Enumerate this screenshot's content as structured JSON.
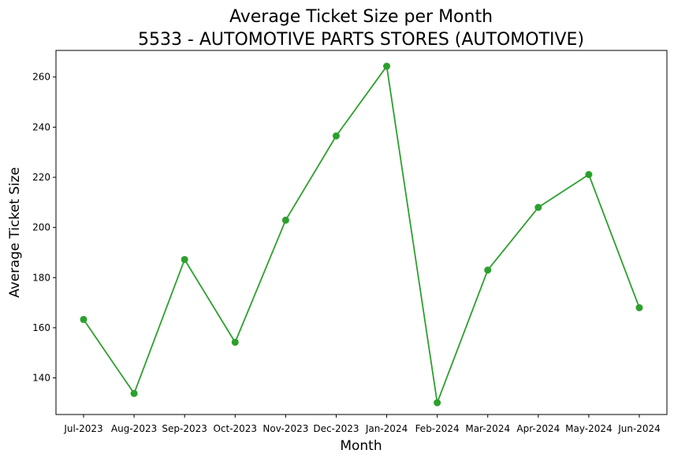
{
  "chart_data": {
    "type": "line",
    "title": "Average Ticket Size per Month",
    "subtitle": "5533 - AUTOMOTIVE PARTS STORES (AUTOMOTIVE)",
    "xlabel": "Month",
    "ylabel": "Average Ticket Size",
    "categories": [
      "Jul-2023",
      "Aug-2023",
      "Sep-2023",
      "Oct-2023",
      "Nov-2023",
      "Dec-2023",
      "Jan-2024",
      "Feb-2024",
      "Mar-2024",
      "Apr-2024",
      "May-2024",
      "Jun-2024"
    ],
    "series": [
      {
        "color": "#2ca02c",
        "marker": "circle",
        "values": [
          163.3,
          133.8,
          187.2,
          154.2,
          202.9,
          236.5,
          264.3,
          130.1,
          183.0,
          208.0,
          221.1,
          168.0
        ]
      }
    ],
    "ylim": [
      125.4,
      270.6
    ],
    "yticks": [
      140,
      160,
      180,
      200,
      220,
      240,
      260
    ],
    "grid": false,
    "legend": "none"
  }
}
